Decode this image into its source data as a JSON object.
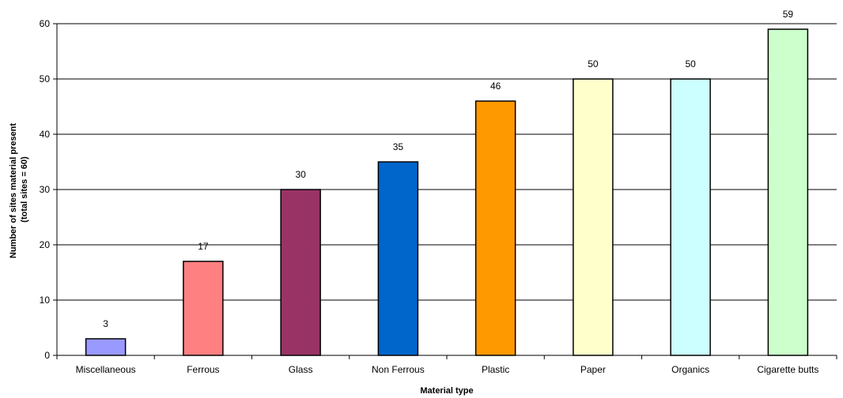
{
  "chart_data": {
    "type": "bar",
    "title": "",
    "xlabel": "Material type",
    "ylabel_lines": [
      "Number of sites material present",
      "(total sites = 60)"
    ],
    "ylim": [
      0,
      60
    ],
    "ytick_step": 10,
    "grid": true,
    "categories": [
      "Miscellaneous",
      "Ferrous",
      "Glass",
      "Non Ferrous",
      "Plastic",
      "Paper",
      "Organics",
      "Cigarette butts"
    ],
    "values": [
      3,
      17,
      30,
      35,
      46,
      50,
      50,
      59
    ],
    "bar_colors": [
      "#9999FF",
      "#FF8080",
      "#993366",
      "#0066CC",
      "#FF9900",
      "#FFFFCC",
      "#CCFFFF",
      "#CCFFCC"
    ]
  }
}
